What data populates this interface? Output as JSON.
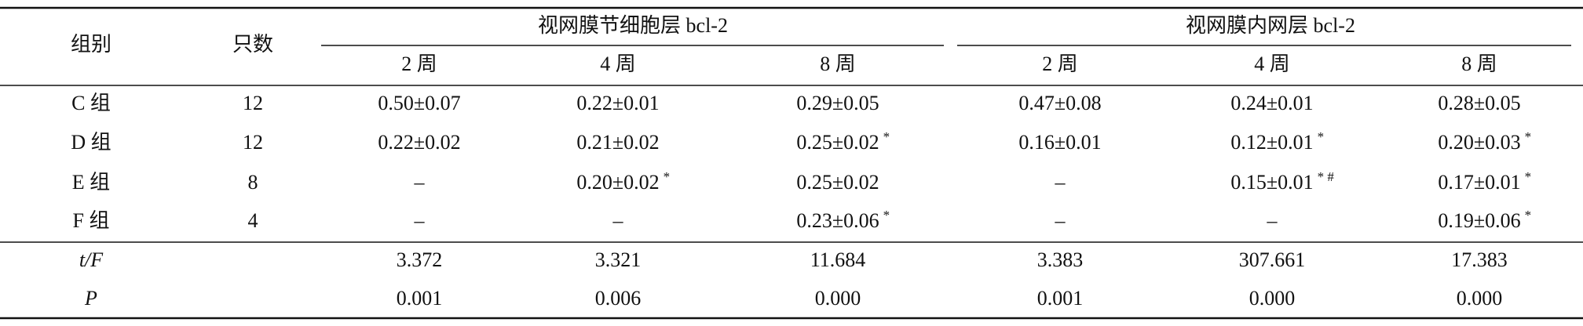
{
  "header": {
    "group": "组别",
    "count": "只数",
    "sections": [
      {
        "title": "视网膜节细胞层 bcl-2",
        "weeks": [
          "2 周",
          "4 周",
          "8 周"
        ]
      },
      {
        "title": "视网膜内网层 bcl-2",
        "weeks": [
          "2 周",
          "4 周",
          "8 周"
        ]
      }
    ]
  },
  "rows": [
    {
      "group": "C 组",
      "count": "12",
      "cells": [
        {
          "text": "0.50±0.07"
        },
        {
          "text": "0.22±0.01"
        },
        {
          "text": "0.29±0.05"
        },
        {
          "text": "0.47±0.08"
        },
        {
          "text": "0.24±0.01"
        },
        {
          "text": "0.28±0.05"
        }
      ]
    },
    {
      "group": "D 组",
      "count": "12",
      "cells": [
        {
          "text": "0.22±0.02"
        },
        {
          "text": "0.21±0.02"
        },
        {
          "text": "0.25±0.02",
          "sup": "*"
        },
        {
          "text": "0.16±0.01"
        },
        {
          "text": "0.12±0.01",
          "sup": "*"
        },
        {
          "text": "0.20±0.03",
          "sup": "*"
        }
      ]
    },
    {
      "group": "E 组",
      "count": "8",
      "cells": [
        {
          "text": "–"
        },
        {
          "text": "0.20±0.02",
          "sup": "*"
        },
        {
          "text": "0.25±0.02"
        },
        {
          "text": "–"
        },
        {
          "text": "0.15±0.01",
          "sup": "* #"
        },
        {
          "text": "0.17±0.01",
          "sup": "*"
        }
      ]
    },
    {
      "group": "F 组",
      "count": "4",
      "cells": [
        {
          "text": "–"
        },
        {
          "text": "–"
        },
        {
          "text": "0.23±0.06",
          "sup": "*"
        },
        {
          "text": "–"
        },
        {
          "text": "–"
        },
        {
          "text": "0.19±0.06",
          "sup": "*"
        }
      ]
    }
  ],
  "stats": [
    {
      "label": "t/F",
      "cells": [
        "3.372",
        "3.321",
        "11.684",
        "3.383",
        "307.661",
        "17.383"
      ]
    },
    {
      "label": "P",
      "cells": [
        "0.001",
        "0.006",
        "0.000",
        "0.001",
        "0.000",
        "0.000"
      ]
    }
  ]
}
